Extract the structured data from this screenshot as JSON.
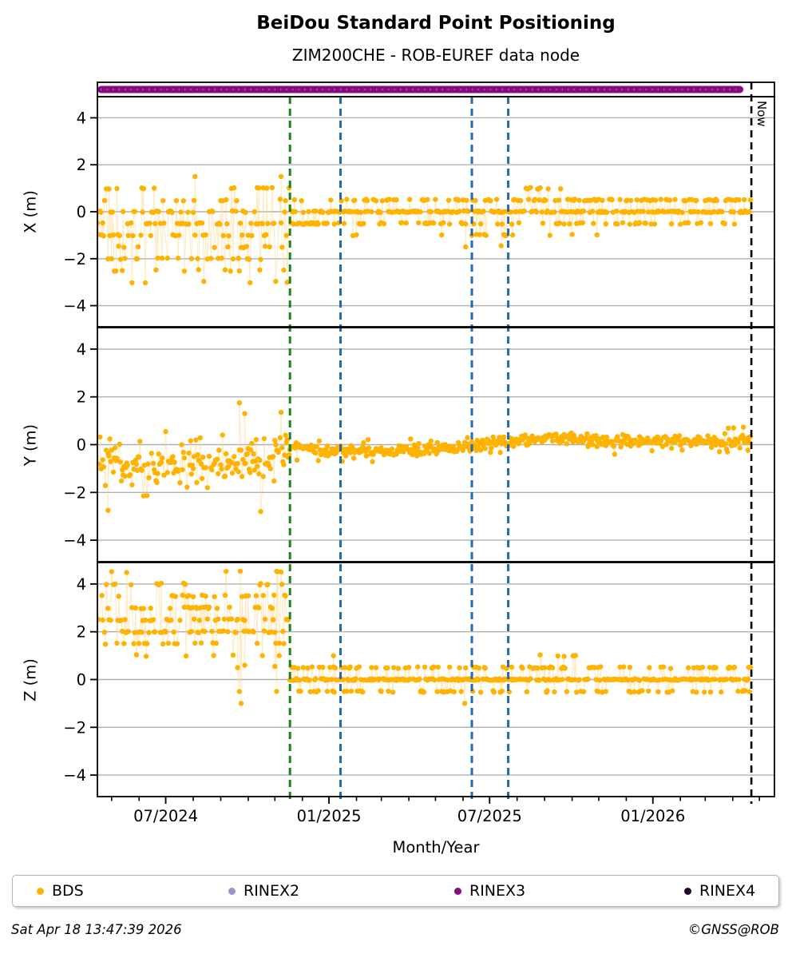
{
  "header": {
    "title": "BeiDou Standard Point Positioning",
    "subtitle": "ZIM200CHE - ROB-EUREF data node"
  },
  "footer": {
    "timestamp": "Sat Apr 18 13:47:39 2026",
    "credit": "©GNSS@ROB"
  },
  "legend": {
    "items": [
      {
        "label": "BDS",
        "color": "#FFB300"
      },
      {
        "label": "RINEX2",
        "color": "#9B94CE"
      },
      {
        "label": "RINEX3",
        "color": "#840B84"
      },
      {
        "label": "RINEX4",
        "color": "#1F0A26"
      }
    ]
  },
  "chart_data": {
    "type": "scatter",
    "title": "BeiDou Standard Point Positioning",
    "subtitle": "ZIM200CHE - ROB-EUREF data node",
    "xlabel": "Month/Year",
    "x_epoch": "day 0 = 2024-04-15",
    "x_range_days": [
      0,
      763
    ],
    "x_major_ticks": [
      {
        "day": 77,
        "label": "07/2024"
      },
      {
        "day": 261,
        "label": "01/2025"
      },
      {
        "day": 442,
        "label": "07/2025"
      },
      {
        "day": 626,
        "label": "01/2026"
      }
    ],
    "x_minor_tick_days": [
      16,
      47,
      77,
      108,
      139,
      170,
      200,
      231,
      261,
      292,
      320,
      351,
      381,
      412,
      442,
      473,
      504,
      535,
      565,
      596,
      626,
      657,
      685,
      716,
      746
    ],
    "y_tick_values": [
      4,
      2,
      0,
      -2,
      -4
    ],
    "y_tick_labels": [
      "4",
      "2",
      "0",
      "−2",
      "−4"
    ],
    "ylim": [
      -4.9,
      4.9
    ],
    "grid_color": "#b0b0b0",
    "panels": [
      {
        "id": "X",
        "ylabel": "X (m)"
      },
      {
        "id": "Y",
        "ylabel": "Y (m)"
      },
      {
        "id": "Z",
        "ylabel": "Z (m)"
      }
    ],
    "marker_lines": [
      {
        "name": "green-event-line",
        "day": 217,
        "color": "#1a831a"
      },
      {
        "name": "blue-event-line-1",
        "day": 274,
        "color": "#1F6CB4"
      },
      {
        "name": "blue-event-line-2",
        "day": 422,
        "color": "#1F6CB4"
      },
      {
        "name": "blue-event-line-3",
        "day": 463,
        "color": "#1F6CB4"
      }
    ],
    "now_line": {
      "day": 737,
      "label": "Now",
      "color": "#000000"
    },
    "availability_bars": [
      {
        "series": "RINEX3",
        "start_day": 0,
        "end_day": 728,
        "color": "#840B84"
      }
    ],
    "series_colors": {
      "BDS": "#FFB300",
      "RINEX2": "#9B94CE",
      "RINEX3": "#840B84",
      "RINEX4": "#1F0A26"
    },
    "bds_scatter": {
      "seed": 42,
      "step_days": 1,
      "quantize_jitter": 0.035,
      "point_radius": 3.2,
      "connect_color": "#ffd27a",
      "connect_opacity": 0.45,
      "panels": {
        "X": {
          "segments": [
            {
              "t": [
                0,
                217
              ],
              "presence": 0.75,
              "levels": [
                [
                  1.0,
                  0.05
                ],
                [
                  0.5,
                  0.09
                ],
                [
                  0.0,
                  0.24
                ],
                [
                  -0.5,
                  0.2
                ],
                [
                  -1.0,
                  0.13
                ],
                [
                  -1.5,
                  0.08
                ],
                [
                  -2.0,
                  0.11
                ],
                [
                  -2.5,
                  0.06
                ],
                [
                  -3.0,
                  0.04
                ]
              ]
            },
            {
              "t": [
                217,
                274
              ],
              "presence": 0.8,
              "levels": [
                [
                  0.5,
                  0.08
                ],
                [
                  0.0,
                  0.46
                ],
                [
                  -0.5,
                  0.46
                ]
              ]
            },
            {
              "t": [
                274,
                420
              ],
              "presence": 0.8,
              "levels": [
                [
                  0.5,
                  0.26
                ],
                [
                  0.0,
                  0.52
                ],
                [
                  -0.5,
                  0.21
                ],
                [
                  -1.0,
                  0.01
                ]
              ]
            },
            {
              "t": [
                420,
                472
              ],
              "presence": 0.8,
              "levels": [
                [
                  0.5,
                  0.2
                ],
                [
                  0.0,
                  0.44
                ],
                [
                  -0.5,
                  0.16
                ],
                [
                  -1.0,
                  0.2
                ]
              ]
            },
            {
              "t": [
                472,
                535
              ],
              "presence": 0.8,
              "levels": [
                [
                  1.0,
                  0.15
                ],
                [
                  0.5,
                  0.25
                ],
                [
                  0.0,
                  0.44
                ],
                [
                  -0.5,
                  0.15
                ],
                [
                  -1.0,
                  0.01
                ]
              ]
            },
            {
              "t": [
                535,
                737
              ],
              "presence": 0.8,
              "levels": [
                [
                  0.5,
                  0.28
                ],
                [
                  0.0,
                  0.52
                ],
                [
                  -0.5,
                  0.19
                ],
                [
                  -1.0,
                  0.01
                ]
              ]
            }
          ],
          "extra_points": [
            [
              110,
              1.5
            ],
            [
              207,
              1.5
            ],
            [
              415,
              -1.5
            ],
            [
              455,
              -1.45
            ]
          ]
        },
        "Y": {
          "segments": [
            {
              "t": [
                0,
                217
              ],
              "presence": 0.8,
              "sd": 0.5,
              "clamp": [
                -2.2,
                0.55
              ],
              "outlier": 0.0,
              "mean_keypoints": [
                [
                  0,
                  -0.75
                ],
                [
                  60,
                  -0.9
                ],
                [
                  120,
                  -0.8
                ],
                [
                  170,
                  -0.7
                ],
                [
                  205,
                  -0.4
                ],
                [
                  217,
                  -0.25
                ]
              ]
            },
            {
              "t": [
                217,
                700
              ],
              "presence": 0.92,
              "sd": 0.13,
              "clamp": [
                -0.8,
                0.8
              ],
              "outlier": 0.03,
              "mean_keypoints": [
                [
                  217,
                  -0.15
                ],
                [
                  260,
                  -0.27
                ],
                [
                  330,
                  -0.28
                ],
                [
                  380,
                  -0.18
                ],
                [
                  422,
                  -0.05
                ],
                [
                  450,
                  0.05
                ],
                [
                  478,
                  0.18
                ],
                [
                  505,
                  0.3
                ],
                [
                  535,
                  0.27
                ],
                [
                  575,
                  0.12
                ],
                [
                  620,
                  0.12
                ],
                [
                  660,
                  0.18
                ],
                [
                  700,
                  0.12
                ]
              ]
            },
            {
              "t": [
                700,
                737
              ],
              "presence": 0.95,
              "sd": 0.2,
              "clamp": [
                -0.8,
                0.8
              ],
              "outlier": 0.05,
              "mean_keypoints": [
                [
                  700,
                  0.12
                ],
                [
                  737,
                  0.1
                ]
              ]
            }
          ],
          "extra_points": [
            [
              12,
              -2.75
            ],
            [
              160,
              1.75
            ],
            [
              166,
              1.3
            ],
            [
              184,
              -2.8
            ],
            [
              207,
              1.35
            ]
          ]
        },
        "Z": {
          "segments": [
            {
              "t": [
                0,
                217
              ],
              "presence": 0.75,
              "levels": [
                [
                  4.5,
                  0.05
                ],
                [
                  4.0,
                  0.11
                ],
                [
                  3.5,
                  0.13
                ],
                [
                  3.0,
                  0.16
                ],
                [
                  2.5,
                  0.19
                ],
                [
                  2.0,
                  0.23
                ],
                [
                  1.5,
                  0.1
                ],
                [
                  1.0,
                  0.03
                ]
              ]
            },
            {
              "t": [
                217,
                480
              ],
              "presence": 0.8,
              "levels": [
                [
                  0.5,
                  0.2
                ],
                [
                  0.0,
                  0.62
                ],
                [
                  -0.5,
                  0.18
                ]
              ]
            },
            {
              "t": [
                480,
                545
              ],
              "presence": 0.8,
              "levels": [
                [
                  1.0,
                  0.1
                ],
                [
                  0.5,
                  0.22
                ],
                [
                  0.0,
                  0.52
                ],
                [
                  -0.5,
                  0.16
                ]
              ]
            },
            {
              "t": [
                545,
                737
              ],
              "presence": 0.8,
              "levels": [
                [
                  0.5,
                  0.22
                ],
                [
                  0.0,
                  0.6
                ],
                [
                  -0.5,
                  0.18
                ]
              ]
            }
          ],
          "extra_points": [
            [
              158,
              0.5
            ],
            [
              160,
              -0.5
            ],
            [
              162,
              -1.0
            ],
            [
              166,
              0.6
            ],
            [
              200,
              0.55
            ],
            [
              202,
              -0.5
            ],
            [
              205,
              1.0
            ],
            [
              266,
              1.0
            ],
            [
              414,
              -1.0
            ]
          ]
        }
      }
    }
  }
}
